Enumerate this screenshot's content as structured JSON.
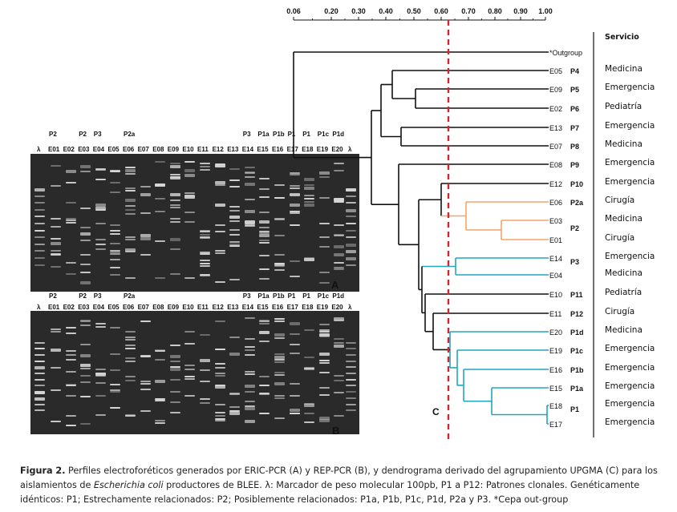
{
  "figure": {
    "caption_lead": "Figura 2.",
    "caption_part1": " Perfiles electroforéticos generados por ERIC-PCR (A) y REP-PCR (B), y dendrograma derivado del agrupamiento UPGMA (C) para los aislamientos de ",
    "caption_italic": "Escherichia coli",
    "caption_part2": " productores de BLEE. λ: Marcador de peso molecular 100pb, P1 a P12: Patrones clonales. Genéticamente idénticos: P1; Estrechamente relacionados: P2; Posiblemente relacionados: P1a, P1b, P1c, P1d, P2a y P3. *Cepa out-group"
  },
  "gels": {
    "patterns_top": [
      "P2",
      "",
      "P2",
      "P3",
      "",
      "P2a",
      "",
      "",
      "",
      "",
      "",
      "",
      "",
      "P3",
      "P1a",
      "P1b",
      "P1",
      "P1",
      "P1c",
      "P1d"
    ],
    "marker": "λ",
    "lanes": [
      "E01",
      "E02",
      "E03",
      "E04",
      "E05",
      "E06",
      "E07",
      "E08",
      "E09",
      "E10",
      "E11",
      "E12",
      "E13",
      "E14",
      "E15",
      "E16",
      "E17",
      "E18",
      "E19",
      "E20"
    ],
    "gel_a_label": "A",
    "gel_b_label": "B"
  },
  "dendrogram": {
    "panel_label": "C",
    "axis_ticks": [
      "0.06",
      "0.20",
      "0.30",
      "0.40",
      "0.50",
      "0.60",
      "0.70",
      "0.80",
      "0.90",
      "1.00"
    ],
    "service_header": "Servicio",
    "rows": [
      {
        "id": "*Outgroup",
        "pattern": "",
        "service": ""
      },
      {
        "id": "E05",
        "pattern": "P4",
        "service": "Medicina"
      },
      {
        "id": "E09",
        "pattern": "P5",
        "service": "Emergencia"
      },
      {
        "id": "E02",
        "pattern": "P6",
        "service": "Pediatría"
      },
      {
        "id": "E13",
        "pattern": "P7",
        "service": "Emergencia"
      },
      {
        "id": "E07",
        "pattern": "P8",
        "service": "Medicina"
      },
      {
        "id": "E08",
        "pattern": "P9",
        "service": "Emergencia"
      },
      {
        "id": "E12",
        "pattern": "P10",
        "service": "Emergencia"
      },
      {
        "id": "E06",
        "pattern": "P2a",
        "service": "Cirugía"
      },
      {
        "id": "E03",
        "pattern": "",
        "service": "Medicina"
      },
      {
        "id": "E01",
        "pattern": "",
        "service": "Cirugía"
      },
      {
        "id": "E14",
        "pattern": "",
        "service": "Emergencia"
      },
      {
        "id": "E04",
        "pattern": "",
        "service": "Medicina"
      },
      {
        "id": "E10",
        "pattern": "P11",
        "service": "Pediatría"
      },
      {
        "id": "E11",
        "pattern": "P12",
        "service": "Cirugía"
      },
      {
        "id": "E20",
        "pattern": "P1d",
        "service": "Medicina"
      },
      {
        "id": "E19",
        "pattern": "P1c",
        "service": "Emergencia"
      },
      {
        "id": "E16",
        "pattern": "P1b",
        "service": "Emergencia"
      },
      {
        "id": "E15",
        "pattern": "P1a",
        "service": "Emergencia"
      },
      {
        "id": "E18",
        "pattern": "",
        "service": "Emergencia"
      },
      {
        "id": "E17",
        "pattern": "",
        "service": "Emergencia"
      }
    ],
    "group_labels": [
      "P2",
      "P3",
      "P1"
    ],
    "colors": {
      "p2_cluster": "#f4a46a",
      "p3_cluster": "#22a6c0",
      "p1_cluster": "#22a6c0",
      "cutoff_line": "#d9232d",
      "tree": "#111111"
    }
  }
}
